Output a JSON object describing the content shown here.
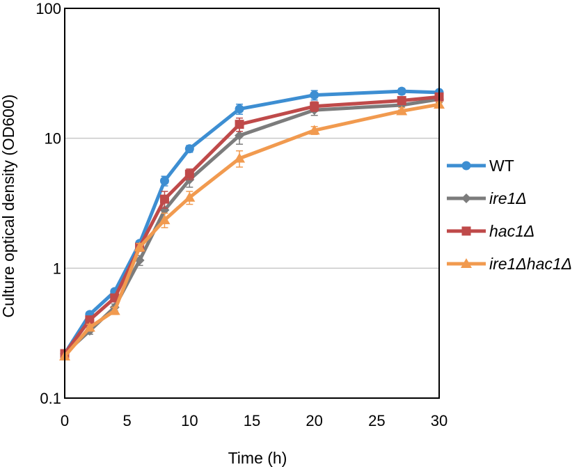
{
  "chart_data": {
    "type": "line",
    "title": "",
    "xlabel": "Time (h)",
    "ylabel": "Culture optical density (OD600)",
    "yscale": "log",
    "xlim": [
      0,
      30
    ],
    "ylim": [
      0.1,
      100
    ],
    "xticks": [
      "0",
      "5",
      "10",
      "15",
      "20",
      "25",
      "30"
    ],
    "yticks": [
      "0.1",
      "1",
      "10",
      "100"
    ],
    "grid": "horizontal",
    "legend_position": "right",
    "series": [
      {
        "name": "WT",
        "name_italic": false,
        "color": "#3d8ed2",
        "marker": "circle",
        "x": [
          0,
          2,
          4,
          6,
          8,
          10,
          14,
          20,
          27,
          30
        ],
        "y": [
          0.22,
          0.44,
          0.66,
          1.55,
          4.7,
          8.3,
          16.8,
          21.5,
          23.0,
          22.5
        ],
        "err": [
          0,
          0.02,
          0.03,
          0.08,
          0.4,
          0.5,
          1.5,
          1.8,
          1.2,
          1.0
        ]
      },
      {
        "name": "ire1Δ",
        "name_italic": true,
        "color": "#7c7c7c",
        "marker": "diamond",
        "x": [
          0,
          2,
          4,
          6,
          8,
          10,
          14,
          20,
          27,
          30
        ],
        "y": [
          0.22,
          0.33,
          0.5,
          1.15,
          2.8,
          4.8,
          10.5,
          16.5,
          18.0,
          20.0
        ],
        "err": [
          0,
          0.02,
          0.03,
          0.1,
          0.5,
          0.6,
          1.5,
          1.5,
          1.5,
          1.2
        ]
      },
      {
        "name": "hac1Δ",
        "name_italic": true,
        "color": "#bf4a4a",
        "marker": "square",
        "x": [
          0,
          2,
          4,
          6,
          8,
          10,
          14,
          20,
          27,
          30
        ],
        "y": [
          0.22,
          0.4,
          0.59,
          1.45,
          3.4,
          5.3,
          12.8,
          17.6,
          19.5,
          20.8
        ],
        "err": [
          0,
          0.02,
          0.03,
          0.1,
          0.5,
          0.5,
          1.5,
          1.5,
          1.2,
          1.0
        ]
      },
      {
        "name": "ire1Δhac1Δ",
        "name_italic": true,
        "color": "#f19a4f",
        "marker": "triangle",
        "x": [
          0,
          2,
          4,
          6,
          8,
          10,
          14,
          20,
          27,
          30
        ],
        "y": [
          0.21,
          0.35,
          0.47,
          1.45,
          2.35,
          3.5,
          7.0,
          11.5,
          16.2,
          18.2
        ],
        "err": [
          0,
          0.02,
          0.03,
          0.1,
          0.3,
          0.4,
          1.0,
          0.8,
          1.0,
          0.8
        ]
      }
    ]
  }
}
